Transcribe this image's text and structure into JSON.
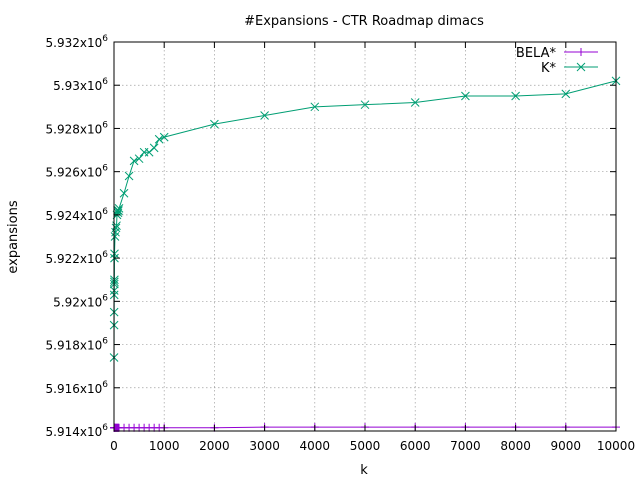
{
  "chart_data": {
    "type": "line",
    "title": "#Expansions - CTR Roadmap dimacs",
    "xlabel": "k",
    "ylabel": "expansions",
    "xlim": [
      0,
      10000
    ],
    "ylim": [
      5.914,
      5.932
    ],
    "y_exponent_note": "y values and ticks in units of 10^6",
    "x_ticks": [
      "0",
      "1000",
      "2000",
      "3000",
      "4000",
      "5000",
      "6000",
      "7000",
      "8000",
      "9000",
      "10000"
    ],
    "y_ticks": [
      {
        "mantissa": "5.914",
        "exp": "6",
        "value": 5.914
      },
      {
        "mantissa": "5.916",
        "exp": "6",
        "value": 5.916
      },
      {
        "mantissa": "5.918",
        "exp": "6",
        "value": 5.918
      },
      {
        "mantissa": "5.92",
        "exp": "6",
        "value": 5.92
      },
      {
        "mantissa": "5.922",
        "exp": "6",
        "value": 5.922
      },
      {
        "mantissa": "5.924",
        "exp": "6",
        "value": 5.924
      },
      {
        "mantissa": "5.926",
        "exp": "6",
        "value": 5.926
      },
      {
        "mantissa": "5.928",
        "exp": "6",
        "value": 5.928
      },
      {
        "mantissa": "5.93",
        "exp": "6",
        "value": 5.93
      },
      {
        "mantissa": "5.932",
        "exp": "6",
        "value": 5.932
      }
    ],
    "x_tick_values": [
      0,
      1000,
      2000,
      3000,
      4000,
      5000,
      6000,
      7000,
      8000,
      9000,
      10000
    ],
    "grid": true,
    "legend_position": "top-right",
    "times_sign": "x",
    "exp_base": "10",
    "series": [
      {
        "name": "BELA*",
        "color": "#9400d3",
        "marker": "plus",
        "points": [
          [
            1,
            5.91415
          ],
          [
            2,
            5.91415
          ],
          [
            3,
            5.91415
          ],
          [
            4,
            5.91415
          ],
          [
            5,
            5.91415
          ],
          [
            6,
            5.91415
          ],
          [
            7,
            5.91415
          ],
          [
            8,
            5.91415
          ],
          [
            9,
            5.91415
          ],
          [
            10,
            5.91415
          ],
          [
            20,
            5.91415
          ],
          [
            30,
            5.91415
          ],
          [
            40,
            5.91415
          ],
          [
            50,
            5.91415
          ],
          [
            60,
            5.91415
          ],
          [
            70,
            5.91415
          ],
          [
            80,
            5.91415
          ],
          [
            90,
            5.91415
          ],
          [
            100,
            5.91415
          ],
          [
            200,
            5.91415
          ],
          [
            300,
            5.91415
          ],
          [
            400,
            5.91415
          ],
          [
            500,
            5.91415
          ],
          [
            600,
            5.91415
          ],
          [
            700,
            5.91415
          ],
          [
            800,
            5.91415
          ],
          [
            900,
            5.91415
          ],
          [
            1000,
            5.91415
          ],
          [
            2000,
            5.91415
          ],
          [
            3000,
            5.91418
          ],
          [
            4000,
            5.91418
          ],
          [
            5000,
            5.91418
          ],
          [
            6000,
            5.91418
          ],
          [
            7000,
            5.91418
          ],
          [
            8000,
            5.91418
          ],
          [
            9000,
            5.91418
          ],
          [
            10000,
            5.91418
          ]
        ]
      },
      {
        "name": "K*",
        "color": "#009e73",
        "marker": "cross",
        "points": [
          [
            1,
            5.9174
          ],
          [
            2,
            5.9189
          ],
          [
            3,
            5.9195
          ],
          [
            4,
            5.9203
          ],
          [
            5,
            5.9205
          ],
          [
            6,
            5.9208
          ],
          [
            7,
            5.9209
          ],
          [
            8,
            5.921
          ],
          [
            9,
            5.922
          ],
          [
            10,
            5.9222
          ],
          [
            20,
            5.923
          ],
          [
            30,
            5.9232
          ],
          [
            40,
            5.9234
          ],
          [
            50,
            5.9235
          ],
          [
            60,
            5.924
          ],
          [
            70,
            5.9242
          ],
          [
            80,
            5.9241
          ],
          [
            90,
            5.9242
          ],
          [
            100,
            5.9243
          ],
          [
            200,
            5.925
          ],
          [
            300,
            5.9258
          ],
          [
            400,
            5.9265
          ],
          [
            500,
            5.9266
          ],
          [
            600,
            5.9269
          ],
          [
            700,
            5.9269
          ],
          [
            800,
            5.9271
          ],
          [
            900,
            5.9275
          ],
          [
            1000,
            5.9276
          ],
          [
            2000,
            5.9282
          ],
          [
            3000,
            5.9286
          ],
          [
            4000,
            5.929
          ],
          [
            5000,
            5.9291
          ],
          [
            6000,
            5.9292
          ],
          [
            7000,
            5.9295
          ],
          [
            8000,
            5.9295
          ],
          [
            9000,
            5.9296
          ],
          [
            10000,
            5.9302
          ]
        ]
      }
    ]
  }
}
